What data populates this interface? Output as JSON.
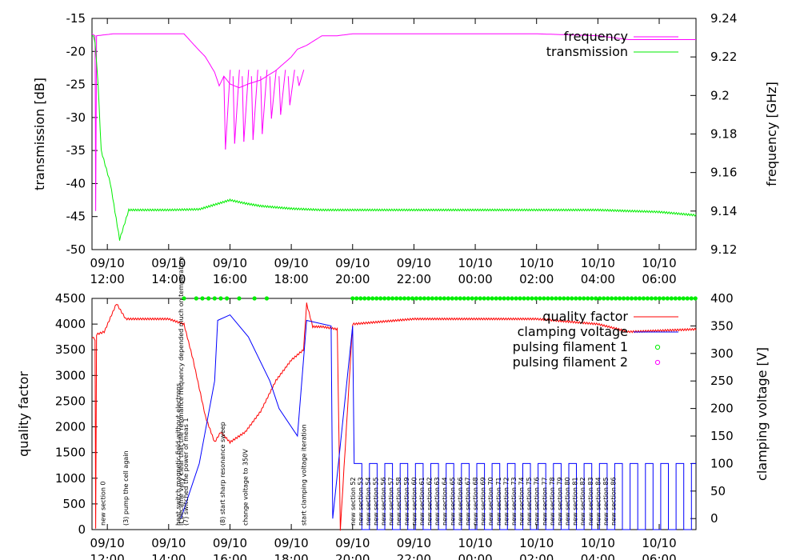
{
  "chart_data": [
    {
      "type": "line",
      "panel": "top",
      "xlabel": "",
      "ylabel": "transmission [dB]",
      "y2label": "frequency [GHz]",
      "xlim": [
        11.5,
        31.2
      ],
      "ylim": [
        -50,
        -15
      ],
      "y2lim": [
        9.12,
        9.24
      ],
      "x_ticks": [
        12,
        14,
        16,
        18,
        20,
        22,
        24,
        26,
        28,
        30
      ],
      "x_tick_labels": [
        [
          "09/10",
          "12:00"
        ],
        [
          "09/10",
          "14:00"
        ],
        [
          "09/10",
          "16:00"
        ],
        [
          "09/10",
          "18:00"
        ],
        [
          "09/10",
          "20:00"
        ],
        [
          "09/10",
          "22:00"
        ],
        [
          "10/10",
          "00:00"
        ],
        [
          "10/10",
          "02:00"
        ],
        [
          "10/10",
          "04:00"
        ],
        [
          "10/10",
          "06:00"
        ]
      ],
      "y_ticks": [
        -15,
        -20,
        -25,
        -30,
        -35,
        -40,
        -45,
        -50
      ],
      "y2_ticks": [
        "9.24",
        "9.22",
        "9.2",
        "9.18",
        "9.16",
        "9.14",
        "9.12"
      ],
      "legend": "top-right",
      "series": [
        {
          "name": "frequency",
          "axis": "y2",
          "color": "#ff00ff",
          "x": [
            11.5,
            11.6,
            11.62,
            11.65,
            12.2,
            13.0,
            14.0,
            14.5,
            14.9,
            15.2,
            15.5,
            15.65,
            15.8,
            16.0,
            16.3,
            16.6,
            17.0,
            17.5,
            18.0,
            18.2,
            18.5,
            19.0,
            19.5,
            20.0,
            22.0,
            24.0,
            26.0,
            28.0,
            29.0,
            31.2
          ],
          "y": [
            9.232,
            9.231,
            9.14,
            9.231,
            9.232,
            9.232,
            9.232,
            9.232,
            9.225,
            9.22,
            9.212,
            9.205,
            9.21,
            9.206,
            9.204,
            9.206,
            9.208,
            9.213,
            9.22,
            9.224,
            9.226,
            9.231,
            9.231,
            9.232,
            9.232,
            9.232,
            9.232,
            9.231,
            9.229,
            9.229
          ],
          "dips": [
            [
              15.8,
              9.172
            ],
            [
              16.1,
              9.175
            ],
            [
              16.4,
              9.176
            ],
            [
              16.7,
              9.177
            ],
            [
              17.0,
              9.18
            ],
            [
              17.3,
              9.188
            ],
            [
              17.6,
              9.19
            ],
            [
              17.9,
              9.195
            ],
            [
              18.2,
              9.205
            ]
          ]
        },
        {
          "name": "transmission",
          "axis": "y",
          "color": "#00ee00",
          "x": [
            11.5,
            11.55,
            11.6,
            11.7,
            11.8,
            12.1,
            12.4,
            12.7,
            13.0,
            14.0,
            15.0,
            15.5,
            16.0,
            16.5,
            17.0,
            17.5,
            18.0,
            19.0,
            20.0,
            22.0,
            24.0,
            26.0,
            28.0,
            30.0,
            31.2
          ],
          "y": [
            -17.5,
            -17.8,
            -18.5,
            -25.0,
            -35.0,
            -40.0,
            -48.5,
            -44.0,
            -44.0,
            -44.0,
            -43.9,
            -43.2,
            -42.5,
            -43.0,
            -43.4,
            -43.6,
            -43.8,
            -44.0,
            -44.0,
            -44.0,
            -44.0,
            -44.0,
            -44.0,
            -44.3,
            -44.8
          ]
        }
      ]
    },
    {
      "type": "line",
      "panel": "bottom",
      "xlabel": "",
      "ylabel": "quality factor",
      "y2label": "clamping voltage [V]",
      "xlim": [
        11.5,
        31.2
      ],
      "ylim": [
        0,
        4500
      ],
      "y2lim": [
        -20,
        400
      ],
      "x_ticks": [
        12,
        14,
        16,
        18,
        20,
        22,
        24,
        26,
        28,
        30
      ],
      "x_tick_labels": [
        [
          "09/10",
          "12:00"
        ],
        [
          "09/10",
          "14:00"
        ],
        [
          "09/10",
          "16:00"
        ],
        [
          "09/10",
          "18:00"
        ],
        [
          "09/10",
          "20:00"
        ],
        [
          "09/10",
          "22:00"
        ],
        [
          "10/10",
          "00:00"
        ],
        [
          "10/10",
          "02:00"
        ],
        [
          "10/10",
          "04:00"
        ],
        [
          "10/10",
          "06:00"
        ]
      ],
      "y_ticks": [
        0,
        500,
        1000,
        1500,
        2000,
        2500,
        3000,
        3500,
        4000,
        4500
      ],
      "y2_ticks": [
        0,
        50,
        100,
        150,
        200,
        250,
        300,
        350,
        400
      ],
      "legend": "top-right",
      "series": [
        {
          "name": "quality factor",
          "axis": "y",
          "color": "#ff0000",
          "x": [
            11.5,
            11.6,
            11.62,
            11.65,
            11.9,
            12.3,
            12.6,
            13.0,
            14.0,
            14.5,
            14.8,
            15.2,
            15.5,
            15.7,
            16.0,
            16.5,
            17.0,
            17.5,
            18.0,
            18.4,
            18.5,
            18.7,
            19.0,
            19.5,
            19.6,
            20.0,
            22.0,
            24.0,
            26.0,
            28.0,
            29.0,
            31.2
          ],
          "y": [
            3750,
            3700,
            0,
            3800,
            3850,
            4400,
            4100,
            4100,
            4100,
            4000,
            3300,
            2200,
            1700,
            1900,
            1700,
            1900,
            2300,
            2900,
            3300,
            3500,
            4400,
            3950,
            3950,
            3900,
            0,
            4000,
            4100,
            4100,
            4100,
            4000,
            3850,
            3900
          ]
        },
        {
          "name": "clamping voltage",
          "axis": "y2",
          "color": "#0000ff",
          "x": [
            14.4,
            15.0,
            15.5,
            15.6,
            16.0,
            16.6,
            17.3,
            17.6,
            18.2,
            18.5,
            19.3,
            19.35,
            20.0,
            20.05
          ],
          "y": [
            0,
            100,
            250,
            360,
            370,
            330,
            250,
            200,
            150,
            360,
            350,
            0,
            350,
            100
          ]
        },
        {
          "name": "pulsing filament 1",
          "axis": "y2",
          "color": "#00ee00",
          "marker": "circle",
          "x": [
            14.5,
            14.9,
            15.1,
            15.3,
            15.5,
            15.7,
            15.9,
            16.3,
            16.8,
            17.2,
            20.0,
            31.2
          ],
          "y": [
            400,
            400,
            400,
            400,
            400,
            400,
            400,
            400,
            400,
            400,
            400,
            400
          ]
        },
        {
          "name": "pulsing filament 2",
          "axis": "y2",
          "color": "#ff00ff",
          "marker": "circle",
          "x": [],
          "y": []
        }
      ],
      "annotations": [
        {
          "x": 11.85,
          "text": "new section 0"
        },
        {
          "x": 12.6,
          "text": "(3) pump the cell again"
        },
        {
          "x": 14.3,
          "text": "heat switch magnetic field without electrons"
        },
        {
          "x": 14.4,
          "text": "it became very clear that the resonance frequency depended much on temperature"
        },
        {
          "x": 14.55,
          "text": "(7) switched the power of meas 1"
        },
        {
          "x": 15.75,
          "text": "(8) start sharp resonance sweep"
        },
        {
          "x": 16.5,
          "text": "change voltage to 350V"
        },
        {
          "x": 18.4,
          "text": "start clamping voltage iteration"
        },
        {
          "x": 20.0,
          "text": "new section 52"
        },
        {
          "x": 20.25,
          "text": "new section 53"
        },
        {
          "x": 20.5,
          "text": "new section 54"
        },
        {
          "x": 20.75,
          "text": "new section 55"
        },
        {
          "x": 21.0,
          "text": "new section 56"
        },
        {
          "x": 21.25,
          "text": "new section 57"
        },
        {
          "x": 21.5,
          "text": "new section 58"
        },
        {
          "x": 21.75,
          "text": "new section 59"
        },
        {
          "x": 22.0,
          "text": "new section 60"
        },
        {
          "x": 22.25,
          "text": "new section 61"
        },
        {
          "x": 22.5,
          "text": "new section 62"
        },
        {
          "x": 22.75,
          "text": "new section 63"
        },
        {
          "x": 23.0,
          "text": "new section 64"
        },
        {
          "x": 23.25,
          "text": "new section 65"
        },
        {
          "x": 23.5,
          "text": "new section 66"
        },
        {
          "x": 23.75,
          "text": "new section 67"
        },
        {
          "x": 24.0,
          "text": "new section 68"
        },
        {
          "x": 24.25,
          "text": "new section 69"
        },
        {
          "x": 24.5,
          "text": "new section 70"
        },
        {
          "x": 24.75,
          "text": "new section 71"
        },
        {
          "x": 25.0,
          "text": "new section 72"
        },
        {
          "x": 25.25,
          "text": "new section 73"
        },
        {
          "x": 25.5,
          "text": "new section 74"
        },
        {
          "x": 25.75,
          "text": "new section 75"
        },
        {
          "x": 26.0,
          "text": "new section 76"
        },
        {
          "x": 26.25,
          "text": "new section 77"
        },
        {
          "x": 26.5,
          "text": "new section 78"
        },
        {
          "x": 26.75,
          "text": "new section 79"
        },
        {
          "x": 27.0,
          "text": "new section 80"
        },
        {
          "x": 27.25,
          "text": "new section 81"
        },
        {
          "x": 27.5,
          "text": "new section 82"
        },
        {
          "x": 27.75,
          "text": "new section 83"
        },
        {
          "x": 28.0,
          "text": "new section 84"
        },
        {
          "x": 28.25,
          "text": "new section 85"
        },
        {
          "x": 28.5,
          "text": "new section 86"
        }
      ]
    }
  ]
}
